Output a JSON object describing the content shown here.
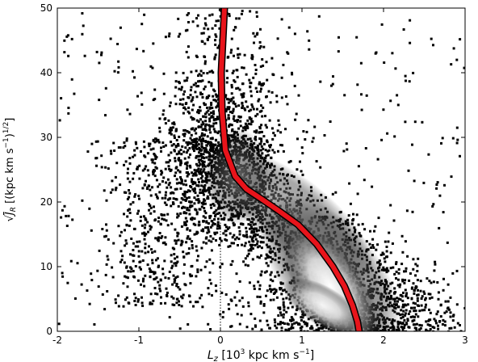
{
  "chart_data": {
    "type": "heatmap",
    "title": "",
    "xlabel": "L_z [10^3 kpc km s^-1]",
    "ylabel": "√J_R [(kpc km s^-1)^1/2]",
    "xlim": [
      -2,
      3
    ],
    "ylim": [
      0,
      50
    ],
    "x_ticks": [
      "-2",
      "-1",
      "0",
      "1",
      "2",
      "3"
    ],
    "y_ticks": [
      "0",
      "10",
      "20",
      "30",
      "40",
      "50"
    ],
    "grid": false,
    "vertical_reference_line": {
      "x": 0,
      "style": "dotted",
      "y_range": [
        0,
        17
      ]
    },
    "density_colormap": [
      "#000000",
      "#ffffff"
    ],
    "background_color": "#ffffff",
    "trend_line_color": "#e8141b",
    "trend_line": {
      "x": [
        0.05,
        0.03,
        0.01,
        0.02,
        0.06,
        0.18,
        0.32,
        0.5,
        0.72,
        0.95,
        1.18,
        1.38,
        1.52,
        1.62,
        1.68,
        1.7
      ],
      "y": [
        50,
        45,
        40,
        34,
        28,
        24,
        22,
        20.5,
        18.6,
        16.5,
        13.5,
        10,
        7,
        4,
        1.5,
        0
      ]
    }
  }
}
